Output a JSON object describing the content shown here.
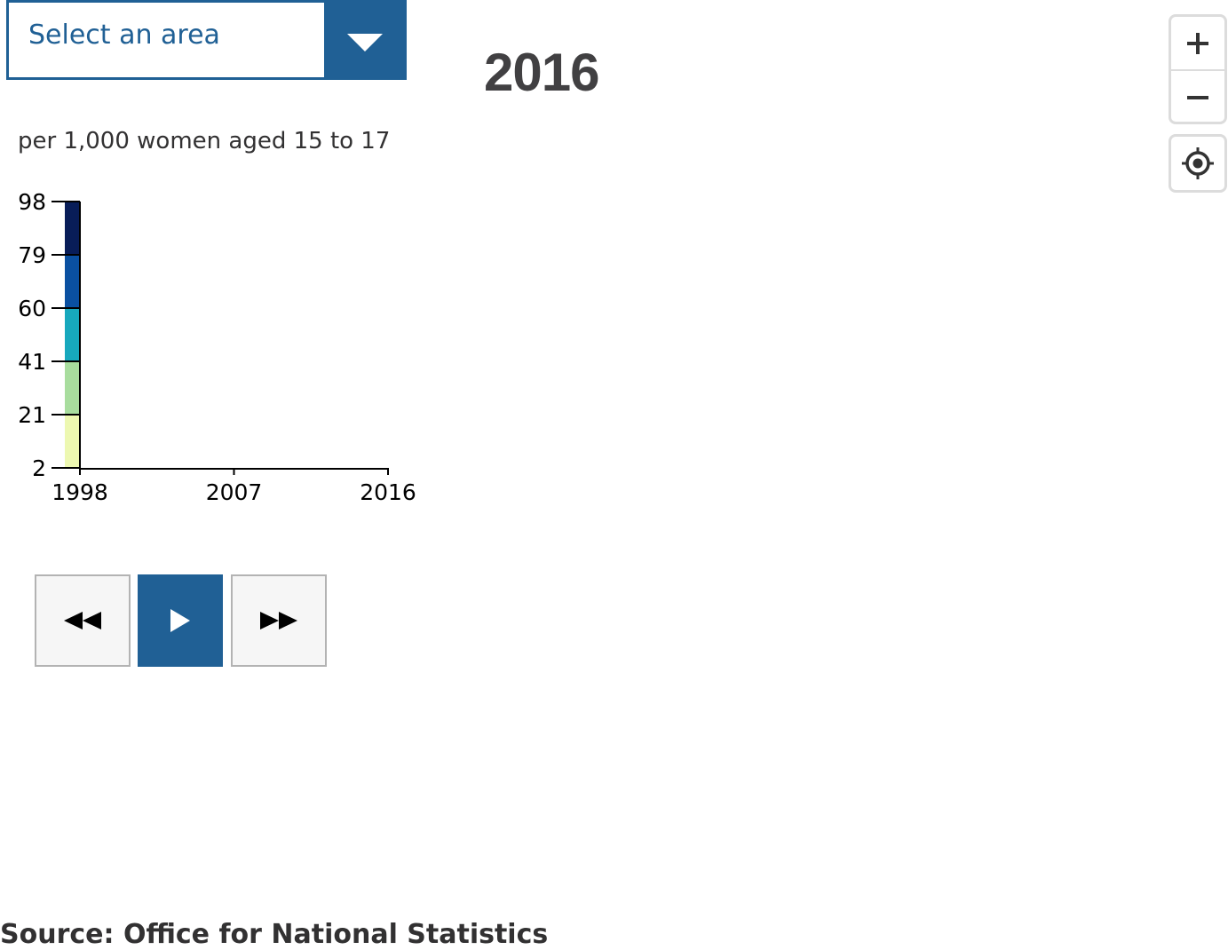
{
  "area_select": {
    "label": "Select an area",
    "icon": "triangle-down-icon"
  },
  "year_title": "2016",
  "legend": {
    "unit": "per 1,000 women aged 15 to 17"
  },
  "chart_data": {
    "type": "bar",
    "description": "Colour legend scale with break values on y-axis and time axis on x-axis",
    "y_breaks": [
      2,
      21,
      41,
      60,
      79,
      98
    ],
    "y_tick_labels": [
      "98",
      "79",
      "60",
      "41",
      "21",
      "2"
    ],
    "x_tick_labels": [
      "1998",
      "2007",
      "2016"
    ],
    "x": [
      1998,
      2007,
      2016
    ],
    "xlim": [
      1998,
      2016
    ],
    "ylim": [
      2,
      98
    ],
    "band_colors": [
      "#edf8b1",
      "#a8dd9e",
      "#17a8bd",
      "#0a50a1",
      "#081d58"
    ],
    "grid": false
  },
  "controls": {
    "back_icon": "rewind-icon",
    "play_icon": "play-icon",
    "forward_icon": "fast-forward-icon",
    "colors": {
      "primary": "#206095",
      "light": "#f6f6f6",
      "border": "#b3b3b3"
    }
  },
  "map_controls": {
    "zoom_in_icon": "plus-icon",
    "zoom_out_icon": "minus-icon",
    "locate_icon": "locate-icon"
  },
  "source": "Source: Office for National Statistics",
  "colors": {
    "accent": "#206095",
    "title": "#414042",
    "text": "#323132"
  }
}
